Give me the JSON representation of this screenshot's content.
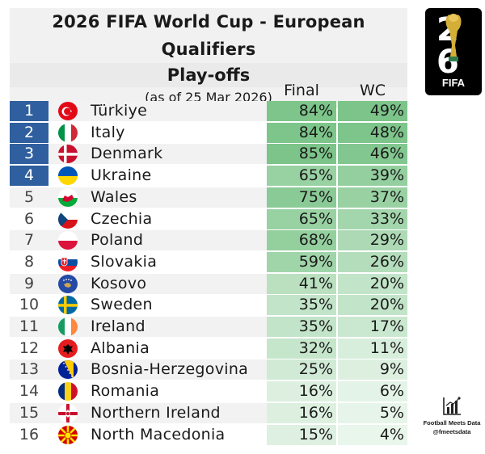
{
  "header": {
    "title": "2026 FIFA World Cup - European Qualifiers",
    "subtitle": "Play-offs",
    "as_of": "(as of 25 Mar 2026)"
  },
  "logo": {
    "text": "FIFA",
    "icon": "world-cup-trophy-icon"
  },
  "credit": {
    "name": "Football Meets Data",
    "handle": "@fmeetsdata",
    "icon": "bar-chart-icon"
  },
  "colors": {
    "qualified_rank": "#2f5f9e",
    "row_alt": "#f2f2f2",
    "heat_high": "#7cc489",
    "heat_low": "#f3faf4"
  },
  "chart_data": {
    "type": "table",
    "columns": [
      "Final",
      "WC"
    ],
    "rows": [
      {
        "rank": "1",
        "country": "Türkiye",
        "flag": "turkey-flag-icon",
        "final": "84%",
        "wc": "49%",
        "highlight": true
      },
      {
        "rank": "2",
        "country": "Italy",
        "flag": "italy-flag-icon",
        "final": "84%",
        "wc": "48%",
        "highlight": true
      },
      {
        "rank": "3",
        "country": "Denmark",
        "flag": "denmark-flag-icon",
        "final": "85%",
        "wc": "46%",
        "highlight": true
      },
      {
        "rank": "4",
        "country": "Ukraine",
        "flag": "ukraine-flag-icon",
        "final": "65%",
        "wc": "39%",
        "highlight": true
      },
      {
        "rank": "5",
        "country": "Wales",
        "flag": "wales-flag-icon",
        "final": "75%",
        "wc": "37%",
        "highlight": false
      },
      {
        "rank": "6",
        "country": "Czechia",
        "flag": "czechia-flag-icon",
        "final": "65%",
        "wc": "33%",
        "highlight": false
      },
      {
        "rank": "7",
        "country": "Poland",
        "flag": "poland-flag-icon",
        "final": "68%",
        "wc": "29%",
        "highlight": false
      },
      {
        "rank": "8",
        "country": "Slovakia",
        "flag": "slovakia-flag-icon",
        "final": "59%",
        "wc": "26%",
        "highlight": false
      },
      {
        "rank": "9",
        "country": "Kosovo",
        "flag": "kosovo-flag-icon",
        "final": "41%",
        "wc": "20%",
        "highlight": false
      },
      {
        "rank": "10",
        "country": "Sweden",
        "flag": "sweden-flag-icon",
        "final": "35%",
        "wc": "20%",
        "highlight": false
      },
      {
        "rank": "11",
        "country": "Ireland",
        "flag": "ireland-flag-icon",
        "final": "35%",
        "wc": "17%",
        "highlight": false
      },
      {
        "rank": "12",
        "country": "Albania",
        "flag": "albania-flag-icon",
        "final": "32%",
        "wc": "11%",
        "highlight": false
      },
      {
        "rank": "13",
        "country": "Bosnia-Herzegovina",
        "flag": "bosnia-flag-icon",
        "final": "25%",
        "wc": "9%",
        "highlight": false
      },
      {
        "rank": "14",
        "country": "Romania",
        "flag": "romania-flag-icon",
        "final": "16%",
        "wc": "6%",
        "highlight": false
      },
      {
        "rank": "15",
        "country": "Northern Ireland",
        "flag": "northern-ireland-flag-icon",
        "final": "16%",
        "wc": "5%",
        "highlight": false
      },
      {
        "rank": "16",
        "country": "North Macedonia",
        "flag": "north-macedonia-flag-icon",
        "final": "15%",
        "wc": "4%",
        "highlight": false
      }
    ]
  }
}
